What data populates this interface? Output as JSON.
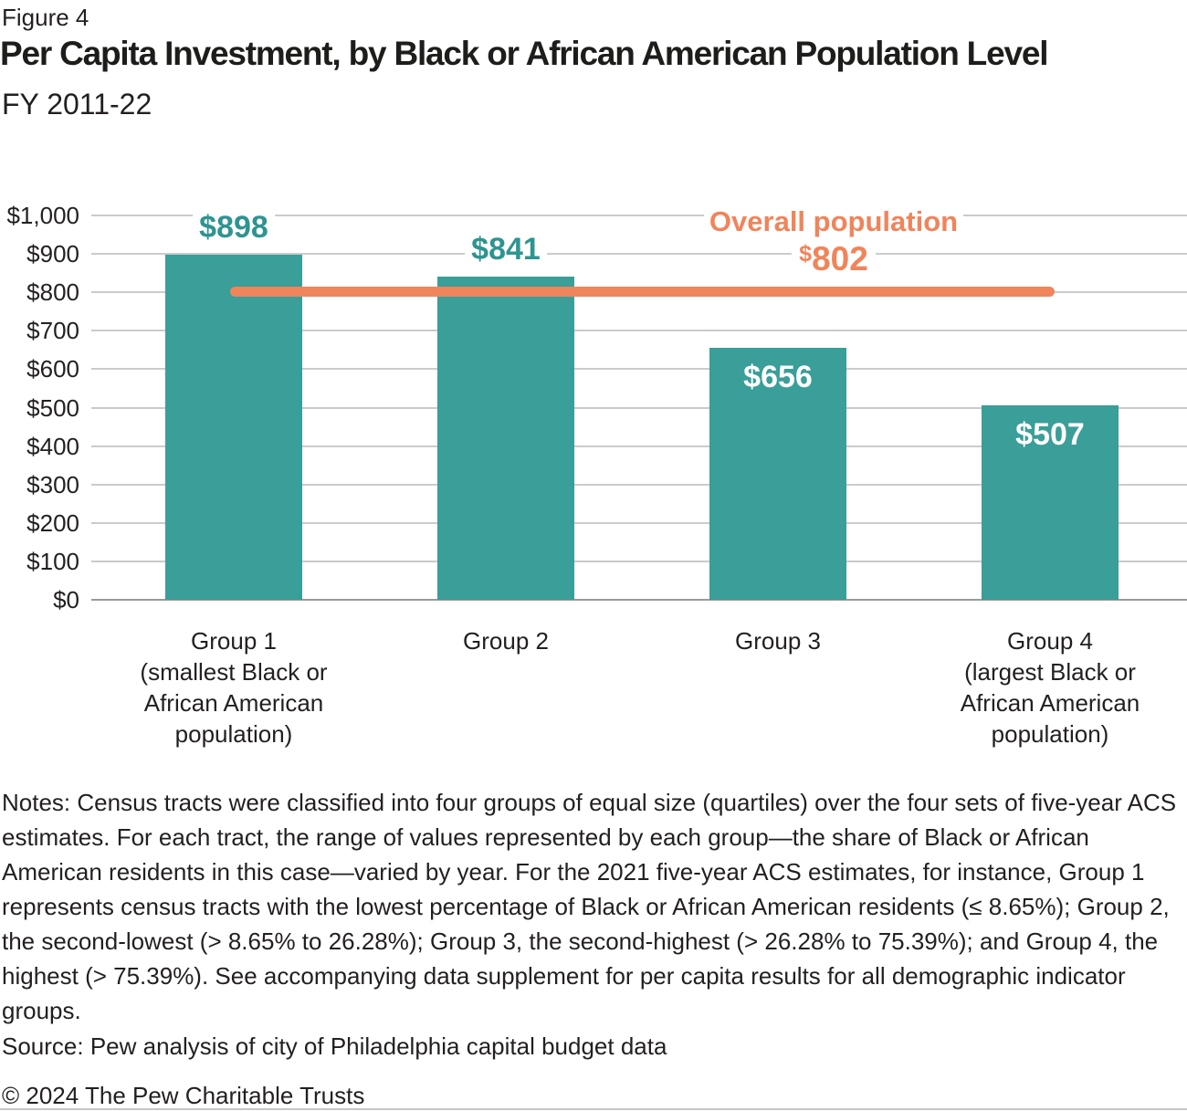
{
  "header": {
    "figure_label": "Figure 4",
    "title": "Per Capita Investment, by Black or African American Population Level",
    "subtitle": "FY 2011-22"
  },
  "chart_data": {
    "type": "bar",
    "title": "Per Capita Investment, by Black or African American Population Level",
    "subtitle": "FY 2011-22",
    "categories": [
      "Group 1\n(smallest Black or\nAfrican American\npopulation)",
      "Group 2",
      "Group 3",
      "Group 4\n(largest Black or\nAfrican American\npopulation)"
    ],
    "values": [
      898,
      841,
      656,
      507
    ],
    "value_labels": [
      "$898",
      "$841",
      "$656",
      "$507"
    ],
    "value_label_placement": [
      "above",
      "above",
      "inside",
      "inside"
    ],
    "reference_line": {
      "label": "Overall population",
      "value": 802,
      "value_label": "$802",
      "color": "#f0845a"
    },
    "ylim": [
      0,
      1000
    ],
    "yticks": [
      0,
      100,
      200,
      300,
      400,
      500,
      600,
      700,
      800,
      900,
      1000
    ],
    "ytick_labels": [
      "$0",
      "$100",
      "$200",
      "$300",
      "$400",
      "$500",
      "$600",
      "$700",
      "$800",
      "$900",
      "$1,000"
    ],
    "grid": true,
    "legend_position": "none",
    "xlabel": "",
    "ylabel": "",
    "colors": {
      "bar": "#3a9e99",
      "value_label_above": "#2f9490",
      "value_label_inside": "#ffffff",
      "reference": "#f0845a",
      "gridline": "#cbcbcb",
      "axis_line": "#9a9a9a",
      "tick_text": "#231f20"
    }
  },
  "notes": "Notes: Census tracts were classified into four groups of equal size (quartiles) over the four sets of five-year ACS estimates. For each tract, the range of values represented by each group—the share of Black or African American residents in this case—varied by year. For the 2021 five-year ACS estimates, for instance, Group 1 represents census tracts with the lowest percentage of Black or African American residents (≤ 8.65%); Group 2, the second-lowest (> 8.65% to 26.28%); Group 3, the second-highest (> 26.28% to 75.39%); and Group 4, the highest (> 75.39%). See accompanying data supplement for per capita results for all demographic indicator groups.",
  "source": "Source: Pew analysis of city of Philadelphia capital budget data",
  "copyright": "© 2024 The Pew Charitable Trusts"
}
